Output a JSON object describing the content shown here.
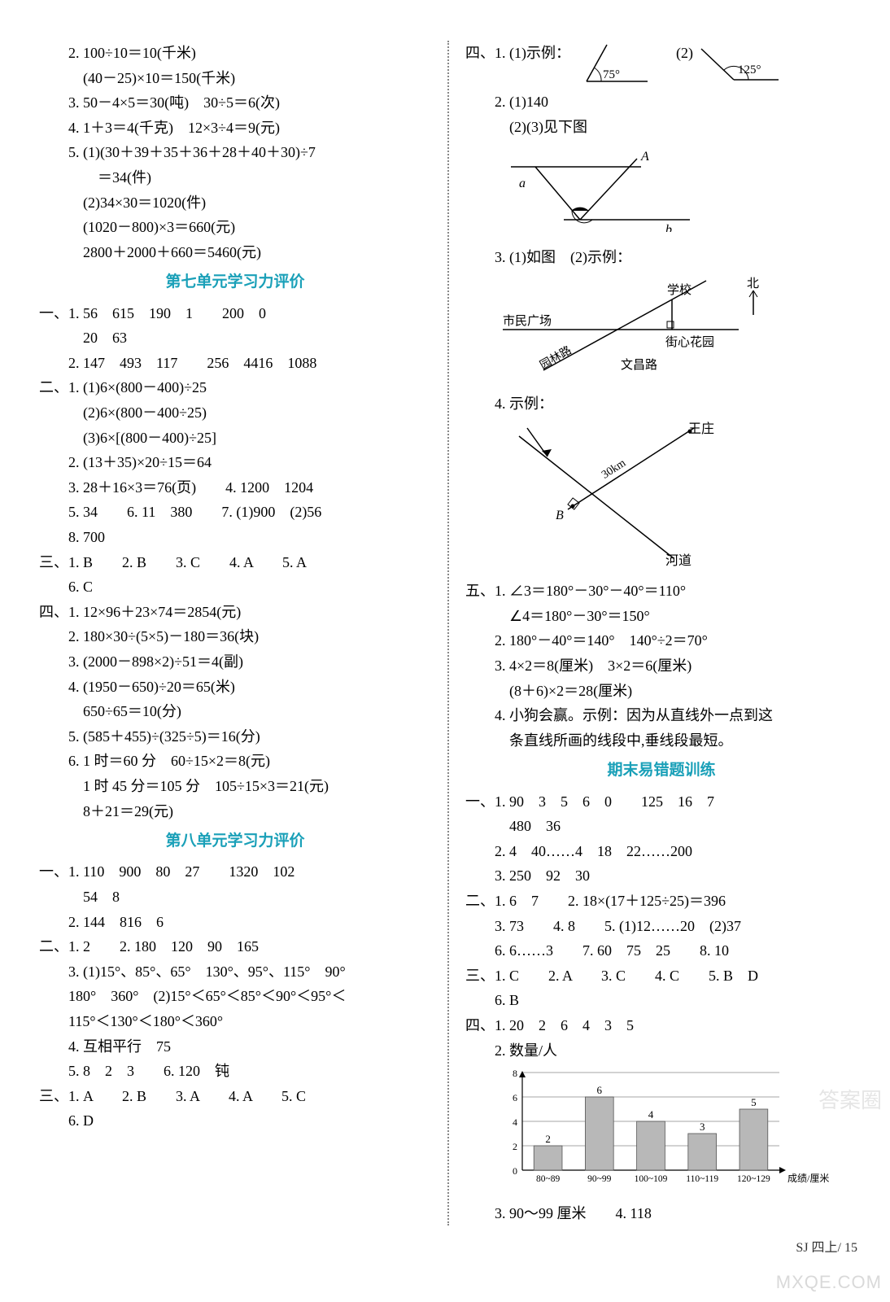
{
  "left": {
    "p2": "2. 100÷10＝10(千米)",
    "p2b": "(40－25)×10＝150(千米)",
    "p3": "3. 50－4×5＝30(吨)　30÷5＝6(次)",
    "p4": "4. 1＋3＝4(千克)　12×3÷4＝9(元)",
    "p5": "5. (1)(30＋39＋35＋36＋28＋40＋30)÷7",
    "p5b": "＝34(件)",
    "p5c": "(2)34×30＝1020(件)",
    "p5d": "(1020－800)×3＝660(元)",
    "p5e": "2800＋2000＋660＝5460(元)",
    "title7": "第七单元学习力评价",
    "s7_1_1": "一、1. 56　615　190　1　　200　0",
    "s7_1_1b": "20　63",
    "s7_1_2": "2. 147　493　117　　256　4416　1088",
    "s7_2_1": "二、1. (1)6×(800－400)÷25",
    "s7_2_1b": "(2)6×(800－400÷25)",
    "s7_2_1c": "(3)6×[(800－400)÷25]",
    "s7_2_2": "2. (13＋35)×20÷15＝64",
    "s7_2_3": "3. 28＋16×3＝76(页)　　4. 1200　1204",
    "s7_2_5": "5. 34　　6. 11　380　　7. (1)900　(2)56",
    "s7_2_8": "8. 700",
    "s7_3": "三、1. B　　2. B　　3. C　　4. A　　5. A",
    "s7_3b": "6. C",
    "s7_4_1": "四、1. 12×96＋23×74＝2854(元)",
    "s7_4_2": "2. 180×30÷(5×5)－180＝36(块)",
    "s7_4_3": "3. (2000－898×2)÷51＝4(副)",
    "s7_4_4": "4. (1950－650)÷20＝65(米)",
    "s7_4_4b": "650÷65＝10(分)",
    "s7_4_5": "5. (585＋455)÷(325÷5)＝16(分)",
    "s7_4_6": "6. 1 时＝60 分　60÷15×2＝8(元)",
    "s7_4_6b": "1 时 45 分＝105 分　105÷15×3＝21(元)",
    "s7_4_6c": "8＋21＝29(元)",
    "title8": "第八单元学习力评价",
    "s8_1_1": "一、1. 110　900　80　27　　1320　102",
    "s8_1_1b": "54　8",
    "s8_1_2": "2. 144　816　6",
    "s8_2_1": "二、1. 2　　2. 180　120　90　165",
    "s8_2_3": "3. (1)15°、85°、65°　130°、95°、115°　90°",
    "s8_2_3b": "180°　360°　(2)15°＜65°＜85°＜90°＜95°＜",
    "s8_2_3c": "115°＜130°＜180°＜360°",
    "s8_2_4": "4. 互相平行　75",
    "s8_2_5": "5. 8　2　3　　6. 120　钝",
    "s8_3": "三、1. A　　2. B　　3. A　　4. A　　5. C",
    "s8_3b": "6. D"
  },
  "right": {
    "s4_1": "四、1. (1)示例：",
    "s4_1_2": "(2)",
    "angle75": "75°",
    "angle125": "125°",
    "s4_2": "2. (1)140",
    "s4_2b": "(2)(3)见下图",
    "diag2": {
      "label_A": "A",
      "label_a": "a",
      "label_b": "b"
    },
    "s4_3": "3. (1)如图　(2)示例：",
    "diag3": {
      "north": "北",
      "school": "学校",
      "plaza": "市民广场",
      "garden": "街心花园",
      "road_yl": "园林路",
      "road_wc": "文昌路"
    },
    "s4_4": "4. 示例：",
    "diag4": {
      "wz": "王庄",
      "dist": "30km",
      "b": "B",
      "river": "河道"
    },
    "s5_1": "五、1. ∠3＝180°－30°－40°＝110°",
    "s5_1b": "∠4＝180°－30°＝150°",
    "s5_2": "2. 180°－40°＝140°　140°÷2＝70°",
    "s5_3": "3. 4×2＝8(厘米)　3×2＝6(厘米)",
    "s5_3b": "(8＋6)×2＝28(厘米)",
    "s5_4": "4. 小狗会赢。示例：因为从直线外一点到这",
    "s5_4b": "条直线所画的线段中,垂线段最短。",
    "title_qm": "期末易错题训练",
    "qm_1_1": "一、1. 90　3　5　6　0　　125　16　7",
    "qm_1_1b": "480　36",
    "qm_1_2": "2. 4　40……4　18　22……200",
    "qm_1_3": "3. 250　92　30",
    "qm_2_1": "二、1. 6　7　　2. 18×(17＋125÷25)＝396",
    "qm_2_3": "3. 73　　4. 8　　5. (1)12……20　(2)37",
    "qm_2_6": "6. 6……3　　7. 60　75　25　　8. 10",
    "qm_3": "三、1. C　　2. A　　3. C　　4. C　　5. B　D",
    "qm_3b": "6. B",
    "qm_4_1": "四、1. 20　2　6　4　3　5",
    "qm_4_2": "2. 数量/人",
    "chart": {
      "type": "bar",
      "categories": [
        "80~89",
        "90~99",
        "100~109",
        "110~119",
        "120~129"
      ],
      "values": [
        2,
        6,
        4,
        3,
        5
      ],
      "ylim": [
        0,
        8
      ],
      "ytick_step": 2,
      "bar_colors": [
        "#b8b8b8",
        "#b8b8b8",
        "#b8b8b8",
        "#b8b8b8",
        "#b8b8b8"
      ],
      "grid_color": "#888",
      "xlabel": "成绩/厘米",
      "label_fontsize": 12
    },
    "qm_4_3": "3. 90～99 厘米　　4. 118"
  },
  "footer": "SJ 四上/ 15",
  "watermark1": "MXQE.COM",
  "watermark2": "答案圈"
}
